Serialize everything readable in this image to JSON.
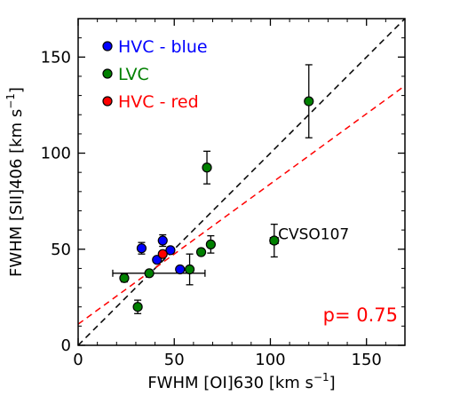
{
  "chart_data": {
    "type": "scatter",
    "xlabel": "FWHM [OI]630 [km s",
    "xlabel_sup": "−1",
    "xlabel_end": "]",
    "ylabel": "FWHM [SII]406 [km s",
    "ylabel_sup": "−1",
    "ylabel_end": "]",
    "xlim": [
      0,
      170
    ],
    "ylim": [
      0,
      170
    ],
    "xticks": [
      0,
      50,
      100,
      150
    ],
    "yticks": [
      0,
      50,
      100,
      150
    ],
    "xtick_labels": [
      "0",
      "50",
      "100",
      "150"
    ],
    "ytick_labels": [
      "0",
      "50",
      "100",
      "150"
    ],
    "grid": false,
    "legend_position": "top-left",
    "series": [
      {
        "name": "HVC - blue",
        "color": "#0000ff",
        "points": [
          {
            "x": 33,
            "y": 50.5,
            "yerr": 3
          },
          {
            "x": 44,
            "y": 54.5,
            "yerr": 3
          },
          {
            "x": 53,
            "y": 39.5,
            "yerr": 0
          },
          {
            "x": 48,
            "y": 49.5,
            "yerr": 0
          },
          {
            "x": 41,
            "y": 44.5,
            "yerr": 0
          }
        ]
      },
      {
        "name": "LVC",
        "color": "#008000",
        "points": [
          {
            "x": 120,
            "y": 127,
            "yerr": 19
          },
          {
            "x": 67,
            "y": 92.5,
            "yerr": 8.5
          },
          {
            "x": 102,
            "y": 54.5,
            "yerr": 8.5,
            "xerr": 2
          },
          {
            "x": 69,
            "y": 52.5,
            "yerr": 4.5
          },
          {
            "x": 64,
            "y": 48.5,
            "yerr": 0
          },
          {
            "x": 58,
            "y": 39.5,
            "yerr": 8
          },
          {
            "x": 37,
            "y": 37.5,
            "yerr": 0
          },
          {
            "x": 24,
            "y": 35,
            "yerr": 2
          },
          {
            "x": 31,
            "y": 20,
            "yerr": 3.5
          }
        ]
      },
      {
        "name": "HVC - red",
        "color": "#ff0000",
        "points": [
          {
            "x": 44,
            "y": 47.5,
            "yerr": 0
          }
        ]
      }
    ],
    "hline_errbar": {
      "x_from": 18,
      "x_to": 66,
      "y": 37.5
    },
    "reference_lines": [
      {
        "kind": "one-to-one",
        "color": "#000000",
        "slope": 1,
        "intercept": 0
      },
      {
        "kind": "fit",
        "color": "#ff0000",
        "slope": 0.73,
        "intercept": 11
      }
    ],
    "annotations": [
      {
        "text": "CVSO107",
        "x": 104,
        "y": 58
      }
    ],
    "pvalue_text": "p= 0.75"
  }
}
